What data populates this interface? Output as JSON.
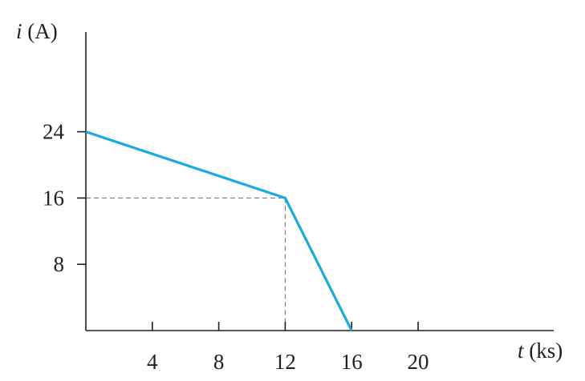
{
  "chart_data": {
    "type": "line",
    "title": "",
    "xlabel_var": "t",
    "xlabel_unit": " (ks)",
    "ylabel_var": "i",
    "ylabel_unit": " (A)",
    "xlim": [
      0,
      22
    ],
    "ylim": [
      0,
      30
    ],
    "x_ticks": [
      4,
      8,
      12,
      16,
      20
    ],
    "y_ticks": [
      8,
      16,
      24
    ],
    "x_tick_labels": [
      "4",
      "8",
      "12",
      "16",
      "20"
    ],
    "y_tick_labels": [
      "8",
      "16",
      "24"
    ],
    "grid": false,
    "series": [
      {
        "x": [
          0,
          12,
          16
        ],
        "y": [
          24,
          16,
          0
        ],
        "color": "#1ba9e1"
      }
    ],
    "reference_point": {
      "x": 12,
      "y": 16
    }
  }
}
